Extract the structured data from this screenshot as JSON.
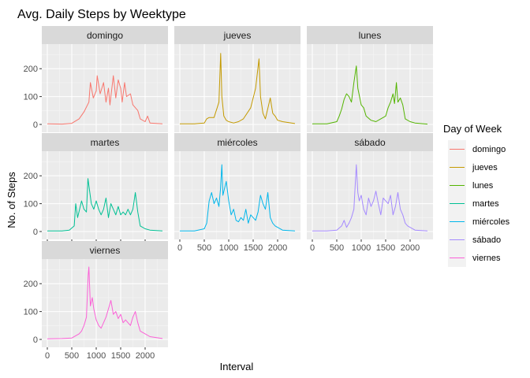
{
  "chart_data": {
    "type": "line",
    "title": "Avg. Daily Steps by Weektype",
    "xlabel": "Interval",
    "ylabel": "No. of Steps",
    "xlim": [
      0,
      2355
    ],
    "ylim": [
      0,
      260
    ],
    "x_ticks": [
      0,
      500,
      1000,
      1500,
      2000
    ],
    "y_ticks": [
      0,
      100,
      200
    ],
    "grid": true,
    "legend": {
      "title": "Day of Week",
      "position": "right"
    },
    "facet_order": [
      "domingo",
      "jueves",
      "lunes",
      "martes",
      "miércoles",
      "sábado",
      "viernes"
    ],
    "series": [
      {
        "name": "domingo",
        "color": "#F8766D",
        "points": [
          [
            0,
            2
          ],
          [
            300,
            1
          ],
          [
            500,
            4
          ],
          [
            650,
            20
          ],
          [
            750,
            45
          ],
          [
            850,
            80
          ],
          [
            880,
            150
          ],
          [
            940,
            95
          ],
          [
            1000,
            120
          ],
          [
            1020,
            175
          ],
          [
            1080,
            110
          ],
          [
            1150,
            150
          ],
          [
            1200,
            80
          ],
          [
            1250,
            130
          ],
          [
            1280,
            70
          ],
          [
            1300,
            100
          ],
          [
            1350,
            175
          ],
          [
            1400,
            95
          ],
          [
            1450,
            160
          ],
          [
            1500,
            130
          ],
          [
            1530,
            80
          ],
          [
            1580,
            150
          ],
          [
            1620,
            100
          ],
          [
            1700,
            110
          ],
          [
            1750,
            70
          ],
          [
            1850,
            50
          ],
          [
            1900,
            20
          ],
          [
            2000,
            10
          ],
          [
            2050,
            30
          ],
          [
            2100,
            5
          ],
          [
            2355,
            2
          ]
        ]
      },
      {
        "name": "jueves",
        "color": "#C49A00",
        "points": [
          [
            0,
            2
          ],
          [
            300,
            2
          ],
          [
            500,
            5
          ],
          [
            550,
            20
          ],
          [
            600,
            25
          ],
          [
            700,
            25
          ],
          [
            800,
            80
          ],
          [
            835,
            255
          ],
          [
            860,
            100
          ],
          [
            900,
            30
          ],
          [
            950,
            15
          ],
          [
            1000,
            10
          ],
          [
            1100,
            5
          ],
          [
            1200,
            10
          ],
          [
            1300,
            20
          ],
          [
            1450,
            60
          ],
          [
            1550,
            130
          ],
          [
            1620,
            235
          ],
          [
            1650,
            100
          ],
          [
            1700,
            40
          ],
          [
            1750,
            20
          ],
          [
            1850,
            95
          ],
          [
            1900,
            40
          ],
          [
            1950,
            30
          ],
          [
            2000,
            15
          ],
          [
            2100,
            10
          ],
          [
            2355,
            3
          ]
        ]
      },
      {
        "name": "lunes",
        "color": "#53B400",
        "points": [
          [
            0,
            2
          ],
          [
            300,
            2
          ],
          [
            500,
            10
          ],
          [
            550,
            30
          ],
          [
            600,
            55
          ],
          [
            650,
            90
          ],
          [
            700,
            110
          ],
          [
            750,
            100
          ],
          [
            800,
            80
          ],
          [
            850,
            150
          ],
          [
            900,
            210
          ],
          [
            930,
            130
          ],
          [
            1000,
            70
          ],
          [
            1050,
            60
          ],
          [
            1100,
            30
          ],
          [
            1200,
            15
          ],
          [
            1300,
            10
          ],
          [
            1400,
            20
          ],
          [
            1500,
            30
          ],
          [
            1550,
            60
          ],
          [
            1600,
            80
          ],
          [
            1650,
            110
          ],
          [
            1680,
            75
          ],
          [
            1720,
            150
          ],
          [
            1750,
            80
          ],
          [
            1800,
            95
          ],
          [
            1850,
            70
          ],
          [
            1900,
            20
          ],
          [
            2000,
            10
          ],
          [
            2100,
            5
          ],
          [
            2355,
            1
          ]
        ]
      },
      {
        "name": "martes",
        "color": "#00C094",
        "points": [
          [
            0,
            2
          ],
          [
            300,
            2
          ],
          [
            450,
            5
          ],
          [
            550,
            20
          ],
          [
            580,
            100
          ],
          [
            620,
            50
          ],
          [
            700,
            110
          ],
          [
            750,
            80
          ],
          [
            800,
            70
          ],
          [
            830,
            190
          ],
          [
            870,
            140
          ],
          [
            900,
            100
          ],
          [
            950,
            80
          ],
          [
            1000,
            110
          ],
          [
            1050,
            80
          ],
          [
            1100,
            60
          ],
          [
            1150,
            80
          ],
          [
            1200,
            120
          ],
          [
            1250,
            50
          ],
          [
            1300,
            100
          ],
          [
            1350,
            80
          ],
          [
            1400,
            60
          ],
          [
            1450,
            90
          ],
          [
            1500,
            60
          ],
          [
            1550,
            70
          ],
          [
            1600,
            60
          ],
          [
            1650,
            80
          ],
          [
            1700,
            60
          ],
          [
            1750,
            80
          ],
          [
            1800,
            140
          ],
          [
            1850,
            70
          ],
          [
            1900,
            20
          ],
          [
            1950,
            15
          ],
          [
            2000,
            10
          ],
          [
            2100,
            5
          ],
          [
            2355,
            2
          ]
        ]
      },
      {
        "name": "miércoles",
        "color": "#00B6EB",
        "points": [
          [
            0,
            2
          ],
          [
            300,
            2
          ],
          [
            500,
            10
          ],
          [
            550,
            30
          ],
          [
            600,
            110
          ],
          [
            650,
            140
          ],
          [
            700,
            100
          ],
          [
            750,
            120
          ],
          [
            800,
            90
          ],
          [
            830,
            150
          ],
          [
            860,
            240
          ],
          [
            880,
            130
          ],
          [
            950,
            180
          ],
          [
            1000,
            110
          ],
          [
            1050,
            60
          ],
          [
            1100,
            80
          ],
          [
            1150,
            40
          ],
          [
            1200,
            35
          ],
          [
            1250,
            50
          ],
          [
            1300,
            40
          ],
          [
            1350,
            80
          ],
          [
            1400,
            30
          ],
          [
            1450,
            60
          ],
          [
            1500,
            50
          ],
          [
            1550,
            40
          ],
          [
            1600,
            70
          ],
          [
            1650,
            130
          ],
          [
            1700,
            100
          ],
          [
            1750,
            80
          ],
          [
            1800,
            140
          ],
          [
            1850,
            50
          ],
          [
            1900,
            30
          ],
          [
            1950,
            20
          ],
          [
            2000,
            15
          ],
          [
            2100,
            5
          ],
          [
            2355,
            2
          ]
        ]
      },
      {
        "name": "sábado",
        "color": "#A58AFF",
        "points": [
          [
            0,
            2
          ],
          [
            300,
            2
          ],
          [
            500,
            5
          ],
          [
            600,
            20
          ],
          [
            650,
            40
          ],
          [
            700,
            15
          ],
          [
            750,
            30
          ],
          [
            800,
            50
          ],
          [
            850,
            80
          ],
          [
            900,
            240
          ],
          [
            930,
            140
          ],
          [
            960,
            110
          ],
          [
            1000,
            130
          ],
          [
            1050,
            80
          ],
          [
            1100,
            60
          ],
          [
            1150,
            120
          ],
          [
            1200,
            90
          ],
          [
            1250,
            110
          ],
          [
            1300,
            145
          ],
          [
            1350,
            100
          ],
          [
            1400,
            60
          ],
          [
            1450,
            120
          ],
          [
            1500,
            110
          ],
          [
            1550,
            100
          ],
          [
            1600,
            130
          ],
          [
            1650,
            60
          ],
          [
            1700,
            90
          ],
          [
            1750,
            140
          ],
          [
            1800,
            80
          ],
          [
            1850,
            60
          ],
          [
            1900,
            30
          ],
          [
            1950,
            20
          ],
          [
            2000,
            15
          ],
          [
            2100,
            5
          ],
          [
            2355,
            2
          ]
        ]
      },
      {
        "name": "viernes",
        "color": "#FB61D7",
        "points": [
          [
            0,
            2
          ],
          [
            300,
            3
          ],
          [
            500,
            5
          ],
          [
            600,
            15
          ],
          [
            650,
            20
          ],
          [
            700,
            30
          ],
          [
            750,
            50
          ],
          [
            800,
            80
          ],
          [
            835,
            230
          ],
          [
            850,
            260
          ],
          [
            880,
            120
          ],
          [
            920,
            150
          ],
          [
            950,
            110
          ],
          [
            1000,
            70
          ],
          [
            1050,
            50
          ],
          [
            1100,
            40
          ],
          [
            1150,
            60
          ],
          [
            1200,
            80
          ],
          [
            1250,
            110
          ],
          [
            1300,
            140
          ],
          [
            1350,
            90
          ],
          [
            1400,
            100
          ],
          [
            1450,
            75
          ],
          [
            1500,
            90
          ],
          [
            1550,
            60
          ],
          [
            1600,
            70
          ],
          [
            1650,
            60
          ],
          [
            1700,
            50
          ],
          [
            1750,
            80
          ],
          [
            1800,
            100
          ],
          [
            1850,
            60
          ],
          [
            1900,
            30
          ],
          [
            1950,
            25
          ],
          [
            2000,
            20
          ],
          [
            2100,
            10
          ],
          [
            2355,
            3
          ]
        ]
      }
    ]
  }
}
